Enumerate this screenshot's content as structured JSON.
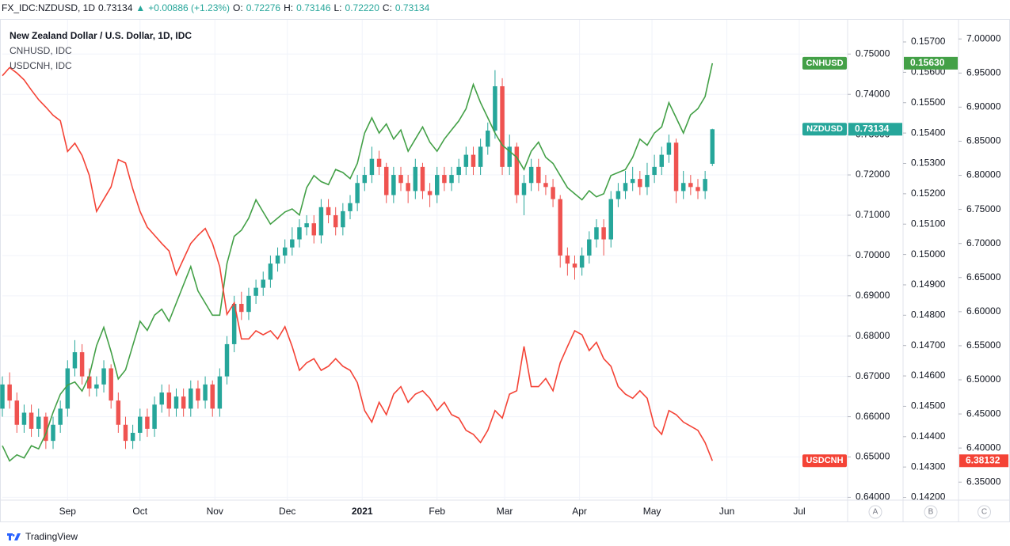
{
  "header": {
    "symbol": "FX_IDC:NZDUSD, 1D",
    "last": "0.73134",
    "arrow": "▲",
    "change": "+0.00886 (+1.23%)",
    "open_label": "O:",
    "open": "0.72276",
    "high_label": "H:",
    "high": "0.73146",
    "low_label": "L:",
    "low": "0.72220",
    "close_label": "C:",
    "close": "0.73134"
  },
  "brand": "TradingView",
  "chart_data": {
    "type": "candlestick",
    "grid": true,
    "x": [
      "2020-08-05",
      "2020-08-08",
      "2020-08-11",
      "2020-08-14",
      "2020-08-17",
      "2020-08-20",
      "2020-08-23",
      "2020-08-26",
      "2020-08-29",
      "2020-09-01",
      "2020-09-04",
      "2020-09-07",
      "2020-09-10",
      "2020-09-13",
      "2020-09-16",
      "2020-09-19",
      "2020-09-22",
      "2020-09-25",
      "2020-09-28",
      "2020-10-01",
      "2020-10-04",
      "2020-10-07",
      "2020-10-10",
      "2020-10-13",
      "2020-10-16",
      "2020-10-19",
      "2020-10-22",
      "2020-10-25",
      "2020-10-28",
      "2020-10-31",
      "2020-11-03",
      "2020-11-06",
      "2020-11-09",
      "2020-11-12",
      "2020-11-15",
      "2020-11-18",
      "2020-11-21",
      "2020-11-24",
      "2020-11-27",
      "2020-11-30",
      "2020-12-03",
      "2020-12-06",
      "2020-12-09",
      "2020-12-12",
      "2020-12-15",
      "2020-12-18",
      "2020-12-21",
      "2020-12-24",
      "2020-12-27",
      "2020-12-30",
      "2021-01-02",
      "2021-01-05",
      "2021-01-08",
      "2021-01-11",
      "2021-01-14",
      "2021-01-17",
      "2021-01-20",
      "2021-01-23",
      "2021-01-26",
      "2021-01-29",
      "2021-02-01",
      "2021-02-04",
      "2021-02-07",
      "2021-02-10",
      "2021-02-13",
      "2021-02-16",
      "2021-02-19",
      "2021-02-22",
      "2021-02-25",
      "2021-02-28",
      "2021-03-03",
      "2021-03-06",
      "2021-03-09",
      "2021-03-12",
      "2021-03-15",
      "2021-03-18",
      "2021-03-21",
      "2021-03-24",
      "2021-03-27",
      "2021-03-30",
      "2021-04-02",
      "2021-04-05",
      "2021-04-08",
      "2021-04-11",
      "2021-04-14",
      "2021-04-17",
      "2021-04-20",
      "2021-04-23",
      "2021-04-26",
      "2021-04-29",
      "2021-05-02",
      "2021-05-05",
      "2021-05-08",
      "2021-05-11",
      "2021-05-14",
      "2021-05-17",
      "2021-05-20",
      "2021-05-23",
      "2021-05-26"
    ],
    "xlim": [
      "2020-08-05",
      "2021-07-21"
    ],
    "xticks": [
      {
        "value": "2020-09-01",
        "label": "Sep"
      },
      {
        "value": "2020-10-01",
        "label": "Oct"
      },
      {
        "value": "2020-11-01",
        "label": "Nov"
      },
      {
        "value": "2020-12-01",
        "label": "Dec"
      },
      {
        "value": "2021-01-01",
        "label": "2021"
      },
      {
        "value": "2021-02-01",
        "label": "Feb"
      },
      {
        "value": "2021-03-01",
        "label": "Mar"
      },
      {
        "value": "2021-04-01",
        "label": "Apr"
      },
      {
        "value": "2021-05-01",
        "label": "May"
      },
      {
        "value": "2021-06-01",
        "label": "Jun"
      },
      {
        "value": "2021-07-01",
        "label": "Jul"
      }
    ],
    "axis_names": [
      "A",
      "B",
      "C"
    ],
    "ylim": [
      0.6393,
      0.7585
    ],
    "yticks": [
      {
        "value": 0.64,
        "label": "0.64000"
      },
      {
        "value": 0.65,
        "label": "0.65000"
      },
      {
        "value": 0.66,
        "label": "0.66000"
      },
      {
        "value": 0.67,
        "label": "0.67000"
      },
      {
        "value": 0.68,
        "label": "0.68000"
      },
      {
        "value": 0.69,
        "label": "0.69000"
      },
      {
        "value": 0.7,
        "label": "0.70000"
      },
      {
        "value": 0.71,
        "label": "0.71000"
      },
      {
        "value": 0.72,
        "label": "0.72000"
      },
      {
        "value": 0.73,
        "label": "0.73000"
      },
      {
        "value": 0.74,
        "label": "0.74000"
      },
      {
        "value": 0.75,
        "label": "0.75000"
      }
    ],
    "y2lim": [
      0.14191,
      0.15773
    ],
    "y2ticks": [
      {
        "value": 0.142,
        "label": "0.14200"
      },
      {
        "value": 0.143,
        "label": "0.14300"
      },
      {
        "value": 0.144,
        "label": "0.14400"
      },
      {
        "value": 0.145,
        "label": "0.14500"
      },
      {
        "value": 0.146,
        "label": "0.14600"
      },
      {
        "value": 0.147,
        "label": "0.14700"
      },
      {
        "value": 0.148,
        "label": "0.14800"
      },
      {
        "value": 0.149,
        "label": "0.14900"
      },
      {
        "value": 0.15,
        "label": "0.15000"
      },
      {
        "value": 0.151,
        "label": "0.15100"
      },
      {
        "value": 0.152,
        "label": "0.15200"
      },
      {
        "value": 0.153,
        "label": "0.15300"
      },
      {
        "value": 0.154,
        "label": "0.15400"
      },
      {
        "value": 0.155,
        "label": "0.15500"
      },
      {
        "value": 0.156,
        "label": "0.15600"
      },
      {
        "value": 0.157,
        "label": "0.15700"
      }
    ],
    "y3lim": [
      6.3236,
      7.0281
    ],
    "y3ticks": [
      {
        "value": 6.35,
        "label": "6.35000"
      },
      {
        "value": 6.4,
        "label": "6.40000"
      },
      {
        "value": 6.45,
        "label": "6.45000"
      },
      {
        "value": 6.5,
        "label": "6.50000"
      },
      {
        "value": 6.55,
        "label": "6.55000"
      },
      {
        "value": 6.6,
        "label": "6.60000"
      },
      {
        "value": 6.65,
        "label": "6.65000"
      },
      {
        "value": 6.7,
        "label": "6.70000"
      },
      {
        "value": 6.75,
        "label": "6.75000"
      },
      {
        "value": 6.8,
        "label": "6.80000"
      },
      {
        "value": 6.85,
        "label": "6.85000"
      },
      {
        "value": 6.9,
        "label": "6.90000"
      },
      {
        "value": 6.95,
        "label": "6.95000"
      },
      {
        "value": 7,
        "label": "7.00000"
      }
    ],
    "series": [
      {
        "name": "NZDUSD",
        "legend": "New Zealand Dollar / U.S. Dollar, 1D, IDC",
        "type": "candlestick",
        "axis": "y",
        "up_color": "#26a69a",
        "down_color": "#ef5350",
        "color": "#26a69a",
        "last_label": "0.73134",
        "open": [
          0.662,
          0.668,
          0.664,
          0.658,
          0.661,
          0.657,
          0.66,
          0.654,
          0.658,
          0.662,
          0.672,
          0.676,
          0.67,
          0.667,
          0.668,
          0.672,
          0.664,
          0.658,
          0.654,
          0.656,
          0.66,
          0.657,
          0.663,
          0.666,
          0.662,
          0.665,
          0.662,
          0.667,
          0.664,
          0.668,
          0.662,
          0.67,
          0.678,
          0.688,
          0.686,
          0.69,
          0.692,
          0.694,
          0.698,
          0.7,
          0.702,
          0.704,
          0.707,
          0.708,
          0.705,
          0.712,
          0.71,
          0.707,
          0.711,
          0.713,
          0.718,
          0.72,
          0.724,
          0.722,
          0.715,
          0.72,
          0.718,
          0.716,
          0.722,
          0.716,
          0.715,
          0.72,
          0.718,
          0.72,
          0.722,
          0.725,
          0.722,
          0.727,
          0.731,
          0.742,
          0.722,
          0.727,
          0.715,
          0.718,
          0.722,
          0.718,
          0.717,
          0.714,
          0.7,
          0.698,
          0.697,
          0.7,
          0.704,
          0.707,
          0.704,
          0.714,
          0.716,
          0.718,
          0.719,
          0.717,
          0.72,
          0.722,
          0.725,
          0.728,
          0.716,
          0.718,
          0.717,
          0.716,
          0.72276
        ],
        "high": [
          0.67,
          0.671,
          0.666,
          0.663,
          0.663,
          0.662,
          0.661,
          0.66,
          0.664,
          0.674,
          0.679,
          0.678,
          0.672,
          0.67,
          0.674,
          0.673,
          0.666,
          0.66,
          0.658,
          0.662,
          0.662,
          0.665,
          0.668,
          0.668,
          0.667,
          0.667,
          0.669,
          0.669,
          0.67,
          0.669,
          0.672,
          0.68,
          0.69,
          0.691,
          0.692,
          0.694,
          0.696,
          0.7,
          0.702,
          0.704,
          0.707,
          0.709,
          0.71,
          0.71,
          0.714,
          0.714,
          0.712,
          0.713,
          0.715,
          0.72,
          0.722,
          0.727,
          0.726,
          0.723,
          0.722,
          0.722,
          0.72,
          0.724,
          0.723,
          0.718,
          0.722,
          0.722,
          0.722,
          0.724,
          0.727,
          0.727,
          0.729,
          0.733,
          0.746,
          0.744,
          0.73,
          0.728,
          0.72,
          0.724,
          0.724,
          0.72,
          0.719,
          0.715,
          0.702,
          0.7,
          0.702,
          0.706,
          0.709,
          0.709,
          0.716,
          0.718,
          0.721,
          0.722,
          0.721,
          0.723,
          0.725,
          0.727,
          0.73,
          0.729,
          0.721,
          0.72,
          0.719,
          0.721,
          0.73146
        ],
        "low": [
          0.66,
          0.662,
          0.656,
          0.656,
          0.655,
          0.655,
          0.652,
          0.652,
          0.656,
          0.66,
          0.67,
          0.668,
          0.665,
          0.665,
          0.666,
          0.662,
          0.656,
          0.652,
          0.652,
          0.654,
          0.655,
          0.655,
          0.661,
          0.66,
          0.66,
          0.66,
          0.66,
          0.662,
          0.662,
          0.66,
          0.66,
          0.668,
          0.676,
          0.684,
          0.684,
          0.688,
          0.69,
          0.692,
          0.696,
          0.698,
          0.7,
          0.702,
          0.705,
          0.703,
          0.703,
          0.708,
          0.705,
          0.705,
          0.709,
          0.711,
          0.716,
          0.718,
          0.72,
          0.713,
          0.713,
          0.716,
          0.713,
          0.714,
          0.714,
          0.712,
          0.713,
          0.716,
          0.716,
          0.718,
          0.72,
          0.72,
          0.72,
          0.725,
          0.729,
          0.72,
          0.72,
          0.713,
          0.71,
          0.716,
          0.716,
          0.715,
          0.712,
          0.697,
          0.695,
          0.694,
          0.695,
          0.698,
          0.702,
          0.7,
          0.702,
          0.712,
          0.714,
          0.716,
          0.715,
          0.715,
          0.718,
          0.72,
          0.723,
          0.713,
          0.714,
          0.715,
          0.714,
          0.714,
          0.7222
        ],
        "close": [
          0.668,
          0.664,
          0.658,
          0.661,
          0.657,
          0.66,
          0.654,
          0.658,
          0.662,
          0.672,
          0.676,
          0.67,
          0.667,
          0.668,
          0.672,
          0.664,
          0.658,
          0.654,
          0.656,
          0.66,
          0.657,
          0.663,
          0.666,
          0.662,
          0.665,
          0.662,
          0.667,
          0.664,
          0.668,
          0.662,
          0.67,
          0.678,
          0.688,
          0.686,
          0.69,
          0.692,
          0.694,
          0.698,
          0.7,
          0.702,
          0.704,
          0.707,
          0.708,
          0.705,
          0.712,
          0.71,
          0.707,
          0.711,
          0.713,
          0.718,
          0.72,
          0.724,
          0.722,
          0.715,
          0.72,
          0.718,
          0.716,
          0.722,
          0.716,
          0.715,
          0.72,
          0.718,
          0.72,
          0.722,
          0.725,
          0.722,
          0.727,
          0.731,
          0.742,
          0.722,
          0.727,
          0.715,
          0.718,
          0.722,
          0.718,
          0.717,
          0.714,
          0.7,
          0.698,
          0.697,
          0.7,
          0.704,
          0.707,
          0.704,
          0.714,
          0.716,
          0.718,
          0.719,
          0.717,
          0.72,
          0.722,
          0.725,
          0.728,
          0.716,
          0.718,
          0.717,
          0.716,
          0.719,
          0.73134
        ]
      },
      {
        "name": "CNHUSD",
        "legend": "CNHUSD, IDC",
        "type": "line",
        "axis": "y2",
        "color": "#43a047",
        "last_label": "0.15630",
        "values": [
          0.1437,
          0.1432,
          0.1434,
          0.1433,
          0.1437,
          0.1436,
          0.1441,
          0.1448,
          0.1454,
          0.1457,
          0.1458,
          0.1455,
          0.146,
          0.147,
          0.1476,
          0.1468,
          0.1459,
          0.1462,
          0.147,
          0.1478,
          0.1475,
          0.148,
          0.1482,
          0.1478,
          0.1484,
          0.149,
          0.1496,
          0.1488,
          0.1484,
          0.148,
          0.148,
          0.1497,
          0.1506,
          0.1508,
          0.1512,
          0.1518,
          0.1514,
          0.151,
          0.1512,
          0.1514,
          0.1515,
          0.1513,
          0.1522,
          0.1526,
          0.1524,
          0.1523,
          0.1528,
          0.1527,
          0.1525,
          0.153,
          0.154,
          0.1545,
          0.154,
          0.1543,
          0.1538,
          0.1541,
          0.1534,
          0.1538,
          0.1542,
          0.1537,
          0.1534,
          0.1538,
          0.1541,
          0.1544,
          0.1548,
          0.1556,
          0.155,
          0.1545,
          0.154,
          0.1536,
          0.1534,
          0.1532,
          0.1528,
          0.1534,
          0.1537,
          0.1532,
          0.153,
          0.1526,
          0.1522,
          0.152,
          0.1518,
          0.1521,
          0.1519,
          0.152,
          0.1526,
          0.1527,
          0.1528,
          0.1532,
          0.1538,
          0.1536,
          0.154,
          0.1542,
          0.155,
          0.1545,
          0.154,
          0.1546,
          0.1548,
          0.1552,
          0.1563
        ]
      },
      {
        "name": "USDCNH",
        "legend": "USDCNH, IDC",
        "type": "line",
        "axis": "y3",
        "color": "#f44336",
        "last_label": "6.38132",
        "values": [
          6.946,
          6.958,
          6.95,
          6.94,
          6.925,
          6.911,
          6.9,
          6.888,
          6.88,
          6.835,
          6.847,
          6.829,
          6.8,
          6.747,
          6.765,
          6.783,
          6.823,
          6.818,
          6.78,
          6.747,
          6.724,
          6.712,
          6.7,
          6.689,
          6.654,
          6.677,
          6.7,
          6.712,
          6.722,
          6.7,
          6.666,
          6.596,
          6.613,
          6.56,
          6.56,
          6.572,
          6.566,
          6.572,
          6.56,
          6.578,
          6.549,
          6.514,
          6.525,
          6.531,
          6.514,
          6.52,
          6.531,
          6.52,
          6.514,
          6.496,
          6.455,
          6.438,
          6.467,
          6.449,
          6.479,
          6.49,
          6.467,
          6.479,
          6.484,
          6.473,
          6.455,
          6.467,
          6.449,
          6.444,
          6.426,
          6.42,
          6.408,
          6.426,
          6.455,
          6.444,
          6.479,
          6.484,
          6.549,
          6.49,
          6.49,
          6.502,
          6.484,
          6.525,
          6.549,
          6.572,
          6.566,
          6.543,
          6.555,
          6.531,
          6.52,
          6.49,
          6.479,
          6.473,
          6.484,
          6.473,
          6.432,
          6.42,
          6.455,
          6.449,
          6.438,
          6.432,
          6.426,
          6.408,
          6.38132
        ]
      }
    ]
  }
}
